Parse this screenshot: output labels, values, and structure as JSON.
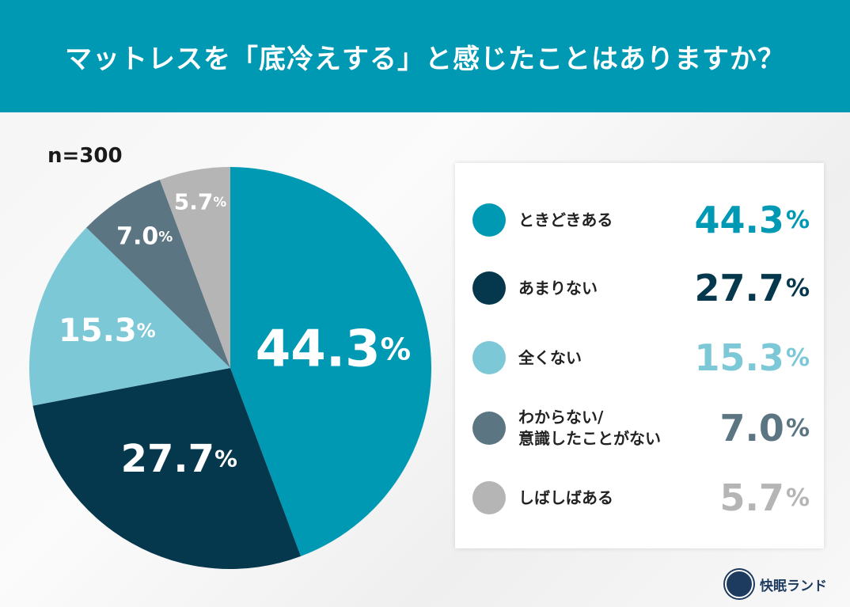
{
  "header": {
    "title": "マットレスを「底冷えする」と感じたことはありますか？"
  },
  "sample": "n=300",
  "chart_data": {
    "type": "pie",
    "title": "マットレスを「底冷えする」と感じたことはありますか？",
    "start": "top",
    "direction": "clockwise",
    "unit": "%",
    "categories": [
      "ときどきある",
      "あまりない",
      "全くない",
      "わからない/\n意識したことがない",
      "しばしばある"
    ],
    "values": [
      44.3,
      27.7,
      15.3,
      7.0,
      5.7
    ],
    "labels": [
      "44.3",
      "27.7",
      "15.3",
      "7.0",
      "5.7"
    ],
    "colors": [
      "#0099b4",
      "#05374d",
      "#7cc8d6",
      "#5c7582",
      "#b5b5b5"
    ],
    "legend": "right"
  },
  "logo": {
    "text": "快眠ランド"
  }
}
